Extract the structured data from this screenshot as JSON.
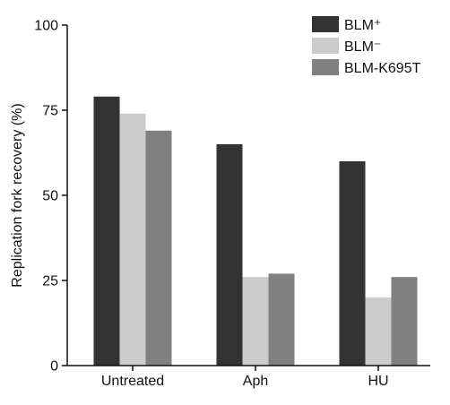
{
  "chart_data": {
    "type": "bar",
    "title": "",
    "xlabel": "",
    "ylabel": "Replication fork recovery (%)",
    "ylim": [
      0,
      100
    ],
    "yticks": [
      0,
      25,
      50,
      75,
      100
    ],
    "grid": false,
    "legend_position": "top-right",
    "categories": [
      "Untreated",
      "Aph",
      "HU"
    ],
    "series": [
      {
        "name": "BLM⁺",
        "color": "#333333",
        "values": [
          79,
          65,
          60
        ]
      },
      {
        "name": "BLM⁻",
        "color": "#cccccc",
        "values": [
          74,
          26,
          20
        ]
      },
      {
        "name": "BLM-K695T",
        "color": "#808080",
        "values": [
          69,
          27,
          26
        ]
      }
    ]
  }
}
